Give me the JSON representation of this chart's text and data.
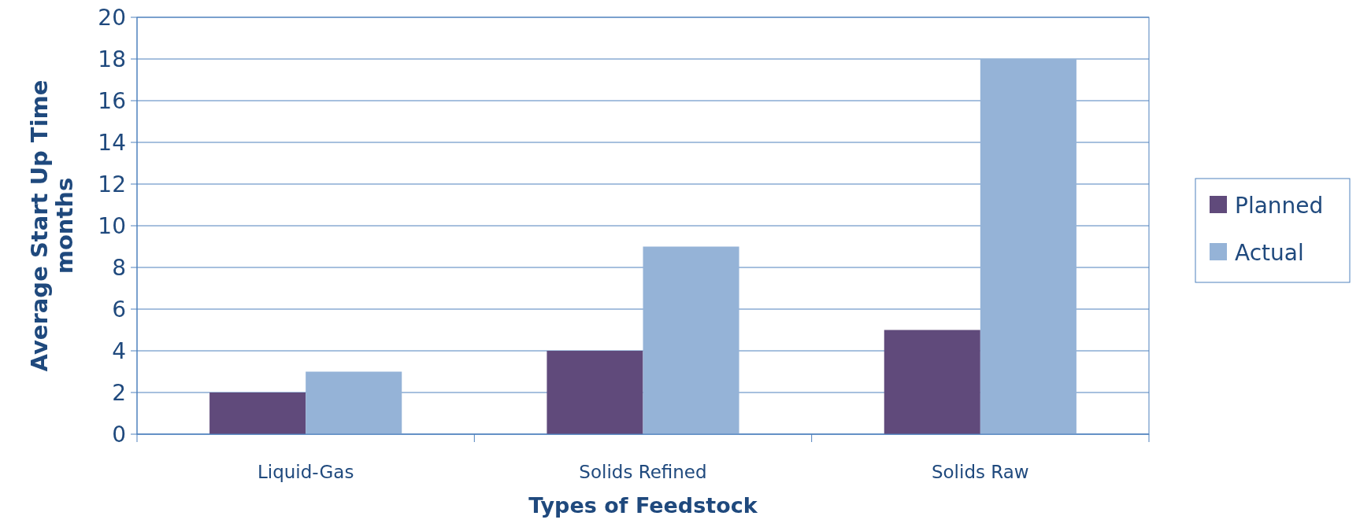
{
  "chart_data": {
    "type": "bar",
    "xlabel": "Types of Feedstock",
    "ylabel": "Average Start Up Time months",
    "categories": [
      "Liquid-Gas",
      "Solids Refined",
      "Solids Raw"
    ],
    "series": [
      {
        "name": "Planned",
        "color": "#604a7b",
        "values": [
          2,
          4,
          5
        ]
      },
      {
        "name": "Actual",
        "color": "#95b3d7",
        "values": [
          3,
          9,
          18
        ]
      }
    ],
    "ylim": [
      0,
      20
    ],
    "yticks": [
      0,
      2,
      4,
      6,
      8,
      10,
      12,
      14,
      16,
      18,
      20
    ],
    "grid": "y",
    "legend": "right"
  }
}
